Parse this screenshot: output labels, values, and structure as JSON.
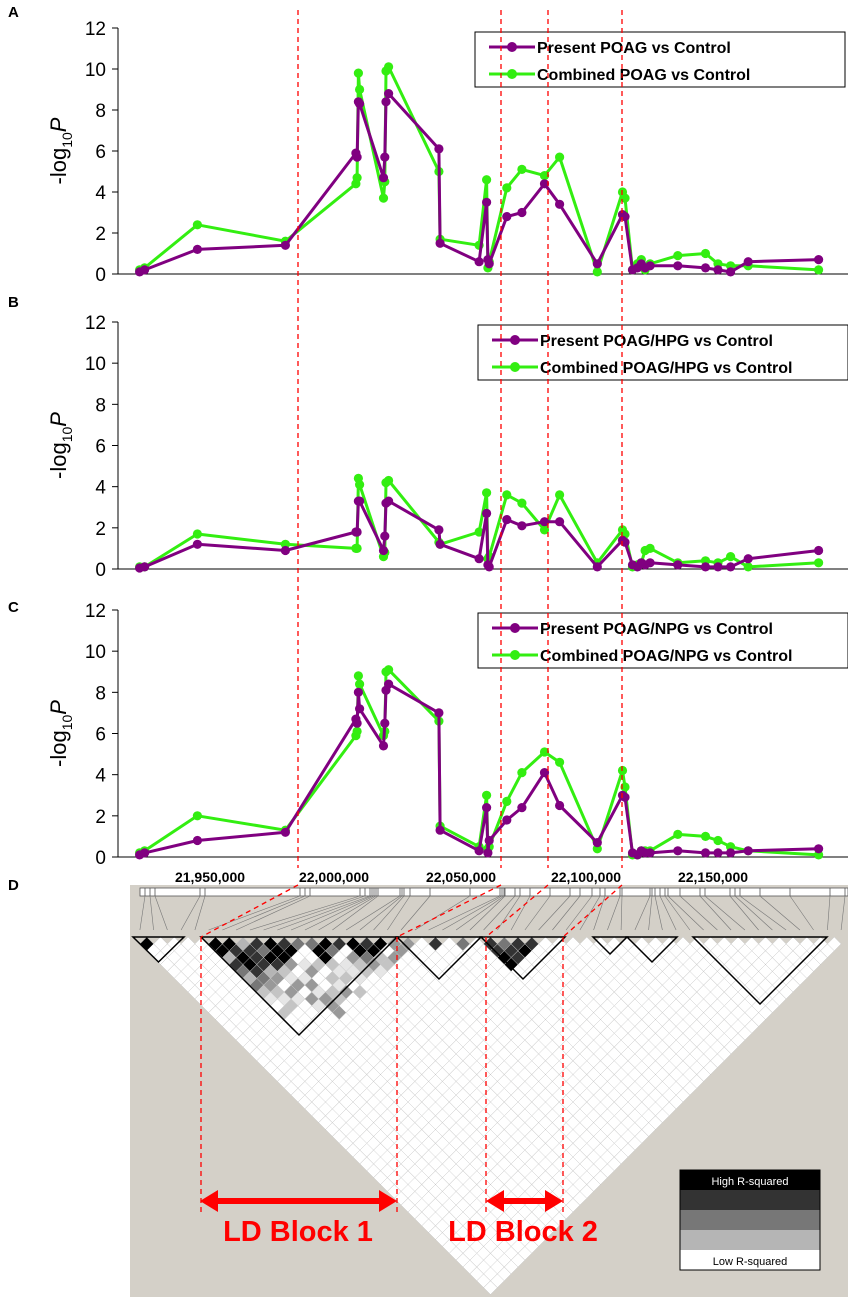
{
  "figure": {
    "axis_x_tick_labels": [
      "21,950,000",
      "22,000,000",
      "22,050,000",
      "22,100,000",
      "22,150,000"
    ],
    "ld_block_labels": [
      "LD Block 1",
      "LD Block 2"
    ],
    "legend_high": "High R-squared",
    "legend_low": "Low R-squared",
    "colors": {
      "present": "#800080",
      "combined": "#33ee11",
      "guide": "#ff0000",
      "ld_background": "#d4d0c8"
    }
  },
  "chart_data": [
    {
      "panel": "A",
      "type": "line",
      "ylabel_main": "-log",
      "ylabel_sub": "10",
      "ylabel_tail": "P",
      "ylim": [
        0,
        12
      ],
      "yticks": [
        0,
        2,
        4,
        6,
        8,
        10,
        12
      ],
      "legend_position": "top-right",
      "series": [
        {
          "name": "Present POAG vs Control",
          "color": "#800080",
          "x": [
            21922000,
            21924000,
            21945000,
            21980000,
            22008000,
            22008500,
            22009000,
            22009500,
            22019000,
            22019500,
            22020000,
            22021000,
            22041000,
            22041500,
            22057000,
            22060000,
            22060500,
            22061000,
            22068000,
            22074000,
            22083000,
            22089000,
            22104000,
            22114000,
            22115000,
            22118000,
            22120000,
            22121500,
            22123000,
            22125000,
            22136000,
            22147000,
            22152000,
            22157000,
            22164000,
            22192000
          ],
          "y": [
            0.1,
            0.2,
            1.2,
            1.4,
            5.9,
            5.7,
            8.4,
            8.3,
            4.7,
            5.7,
            8.4,
            8.8,
            6.1,
            1.5,
            0.6,
            3.5,
            0.7,
            0.5,
            2.8,
            3.0,
            4.4,
            3.4,
            0.5,
            2.9,
            2.8,
            0.2,
            0.3,
            0.5,
            0.3,
            0.4,
            0.4,
            0.3,
            0.2,
            0.1,
            0.6,
            0.7
          ]
        },
        {
          "name": "Combined POAG vs Control",
          "color": "#33ee11",
          "x": [
            21922000,
            21924000,
            21945000,
            21980000,
            22008000,
            22008500,
            22009000,
            22009500,
            22019000,
            22019500,
            22020000,
            22021000,
            22041000,
            22041500,
            22057000,
            22060000,
            22060500,
            22061000,
            22068000,
            22074000,
            22083000,
            22089000,
            22104000,
            22114000,
            22115000,
            22118000,
            22120000,
            22121500,
            22123000,
            22125000,
            22136000,
            22147000,
            22152000,
            22157000,
            22164000,
            22192000
          ],
          "y": [
            0.2,
            0.3,
            2.4,
            1.6,
            4.4,
            4.7,
            9.8,
            9.0,
            3.7,
            4.5,
            9.9,
            10.1,
            5.0,
            1.7,
            1.4,
            4.6,
            0.3,
            0.6,
            4.2,
            5.1,
            4.8,
            5.7,
            0.1,
            4.0,
            3.7,
            0.2,
            0.5,
            0.7,
            0.2,
            0.5,
            0.9,
            1.0,
            0.5,
            0.4,
            0.4,
            0.2
          ]
        }
      ]
    },
    {
      "panel": "B",
      "type": "line",
      "ylabel_main": "-log",
      "ylabel_sub": "10",
      "ylabel_tail": "P",
      "ylim": [
        0,
        12
      ],
      "yticks": [
        0,
        2,
        4,
        6,
        8,
        10,
        12
      ],
      "legend_position": "top-right",
      "series": [
        {
          "name": "Present POAG/HPG vs Control",
          "color": "#800080",
          "x": [
            21922000,
            21924000,
            21945000,
            21980000,
            22008000,
            22008500,
            22009000,
            22009500,
            22019000,
            22019500,
            22020000,
            22021000,
            22041000,
            22041500,
            22057000,
            22060000,
            22060500,
            22061000,
            22068000,
            22074000,
            22083000,
            22089000,
            22104000,
            22114000,
            22115000,
            22118000,
            22120000,
            22121500,
            22123000,
            22125000,
            22136000,
            22147000,
            22152000,
            22157000,
            22164000,
            22192000
          ],
          "y": [
            0.05,
            0.1,
            1.2,
            0.9,
            1.8,
            1.8,
            3.3,
            3.3,
            0.9,
            1.6,
            3.2,
            3.3,
            1.9,
            1.2,
            0.5,
            2.7,
            0.2,
            0.1,
            2.4,
            2.1,
            2.3,
            2.3,
            0.1,
            1.4,
            1.3,
            0.2,
            0.1,
            0.3,
            0.2,
            0.3,
            0.2,
            0.1,
            0.1,
            0.1,
            0.5,
            0.9
          ]
        },
        {
          "name": "Combined POAG/HPG vs Control",
          "color": "#33ee11",
          "x": [
            21922000,
            21924000,
            21945000,
            21980000,
            22008000,
            22008500,
            22009000,
            22009500,
            22019000,
            22019500,
            22020000,
            22021000,
            22041000,
            22041500,
            22057000,
            22060000,
            22060500,
            22061000,
            22068000,
            22074000,
            22083000,
            22089000,
            22104000,
            22114000,
            22115000,
            22118000,
            22120000,
            22121500,
            22123000,
            22125000,
            22136000,
            22147000,
            22152000,
            22157000,
            22164000,
            22192000
          ],
          "y": [
            0.1,
            0.1,
            1.7,
            1.2,
            1.0,
            1.0,
            4.4,
            4.1,
            0.6,
            0.8,
            4.2,
            4.3,
            1.3,
            1.2,
            1.8,
            3.7,
            0.5,
            0.6,
            3.6,
            3.2,
            1.9,
            3.6,
            0.3,
            1.9,
            1.7,
            0.1,
            0.2,
            0.3,
            0.9,
            1.0,
            0.3,
            0.4,
            0.3,
            0.6,
            0.1,
            0.3
          ]
        }
      ]
    },
    {
      "panel": "C",
      "type": "line",
      "ylabel_main": "-log",
      "ylabel_sub": "10",
      "ylabel_tail": "P",
      "ylim": [
        0,
        12
      ],
      "yticks": [
        0,
        2,
        4,
        6,
        8,
        10,
        12
      ],
      "legend_position": "top-right",
      "series": [
        {
          "name": "Present POAG/NPG vs Control",
          "color": "#800080",
          "x": [
            21922000,
            21924000,
            21945000,
            21980000,
            22008000,
            22008500,
            22009000,
            22009500,
            22019000,
            22019500,
            22020000,
            22021000,
            22041000,
            22041500,
            22057000,
            22060000,
            22060500,
            22061000,
            22068000,
            22074000,
            22083000,
            22089000,
            22104000,
            22114000,
            22115000,
            22118000,
            22120000,
            22121500,
            22123000,
            22125000,
            22136000,
            22147000,
            22152000,
            22157000,
            22164000,
            22192000
          ],
          "y": [
            0.1,
            0.2,
            0.8,
            1.2,
            6.7,
            6.5,
            8.0,
            7.2,
            5.4,
            6.5,
            8.1,
            8.4,
            7.0,
            1.3,
            0.3,
            2.4,
            0.2,
            0.8,
            1.8,
            2.4,
            4.1,
            2.5,
            0.7,
            3.0,
            2.9,
            0.2,
            0.1,
            0.3,
            0.2,
            0.2,
            0.3,
            0.2,
            0.2,
            0.2,
            0.3,
            0.4
          ]
        },
        {
          "name": "Combined POAG/NPG vs Control",
          "color": "#33ee11",
          "x": [
            21922000,
            21924000,
            21945000,
            21980000,
            22008000,
            22008500,
            22009000,
            22009500,
            22019000,
            22019500,
            22020000,
            22021000,
            22041000,
            22041500,
            22057000,
            22060000,
            22060500,
            22061000,
            22068000,
            22074000,
            22083000,
            22089000,
            22104000,
            22114000,
            22115000,
            22118000,
            22120000,
            22121500,
            22123000,
            22125000,
            22136000,
            22147000,
            22152000,
            22157000,
            22164000,
            22192000
          ],
          "y": [
            0.2,
            0.3,
            2.0,
            1.3,
            5.9,
            6.1,
            8.8,
            8.4,
            5.9,
            6.1,
            9.0,
            9.1,
            6.6,
            1.5,
            0.5,
            3.0,
            0.4,
            0.5,
            2.7,
            4.1,
            5.1,
            4.6,
            0.4,
            4.2,
            3.4,
            0.1,
            0.1,
            0.3,
            0.3,
            0.3,
            1.1,
            1.0,
            0.8,
            0.5,
            0.3,
            0.1
          ]
        }
      ]
    }
  ]
}
